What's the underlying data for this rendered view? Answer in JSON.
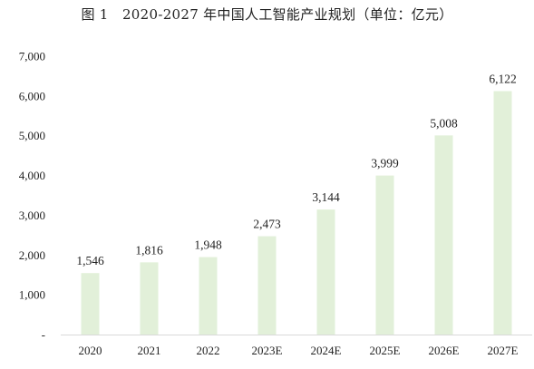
{
  "chart_data": {
    "type": "bar",
    "title": "图 1　2020-2027 年中国人工智能产业规划（单位：亿元）",
    "categories": [
      "2020",
      "2021",
      "2022",
      "2023E",
      "2024E",
      "2025E",
      "2026E",
      "2027E"
    ],
    "values": [
      1546,
      1816,
      1948,
      2473,
      3144,
      3999,
      5008,
      6122
    ],
    "value_labels": [
      "1,546",
      "1,816",
      "1,948",
      "2,473",
      "3,144",
      "3,999",
      "5,008",
      "6,122"
    ],
    "ylim": [
      0,
      7000
    ],
    "yticks": [
      0,
      1000,
      2000,
      3000,
      4000,
      5000,
      6000,
      7000
    ],
    "ytick_labels": [
      "-",
      "1,000",
      "2,000",
      "3,000",
      "4,000",
      "5,000",
      "6,000",
      "7,000"
    ],
    "xlabel": "",
    "ylabel": "",
    "grid": false,
    "legend": "none",
    "bar_color": "#e2f0d9"
  }
}
